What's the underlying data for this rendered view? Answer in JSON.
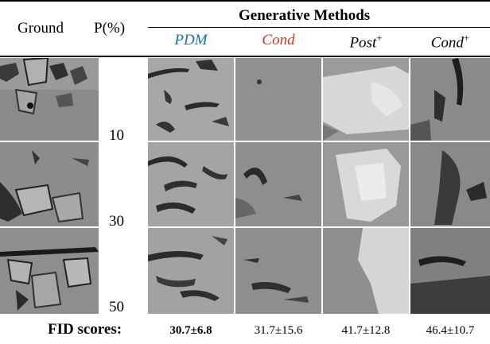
{
  "header": {
    "ground": "Ground",
    "p_label": "P(%)",
    "group_title": "Generative Methods",
    "methods": [
      {
        "name": "PDM",
        "sup": "",
        "color": "#1a6fa0"
      },
      {
        "name": "Cond",
        "sup": "",
        "color": "#c0392b"
      },
      {
        "name": "Post",
        "sup": "+",
        "color": "#000000"
      },
      {
        "name": "Cond",
        "sup": "+",
        "color": "#000000"
      }
    ]
  },
  "rows": [
    {
      "p": "10"
    },
    {
      "p": "30"
    },
    {
      "p": "50"
    }
  ],
  "fid": {
    "label": "FID scores:",
    "values": [
      "30.7±6.8",
      "31.7±15.6",
      "41.7±12.8",
      "46.4±10.7"
    ]
  }
}
